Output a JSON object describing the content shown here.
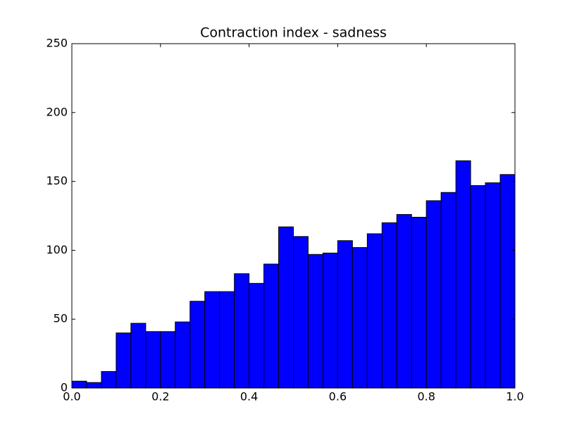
{
  "chart_data": {
    "type": "histogram",
    "title": "Contraction index - sadness",
    "bins": [
      0,
      0.0333,
      0.0667,
      0.1,
      0.1333,
      0.1667,
      0.2,
      0.2333,
      0.2667,
      0.3,
      0.3333,
      0.3667,
      0.4,
      0.4333,
      0.4667,
      0.5,
      0.5333,
      0.5667,
      0.6,
      0.6333,
      0.6667,
      0.7,
      0.7333,
      0.7667,
      0.8,
      0.8333,
      0.8667,
      0.9,
      0.9333,
      0.9667,
      1.0
    ],
    "counts": [
      5,
      4,
      12,
      40,
      47,
      41,
      41,
      48,
      63,
      70,
      70,
      83,
      76,
      90,
      117,
      110,
      97,
      98,
      107,
      102,
      112,
      120,
      126,
      124,
      136,
      142,
      165,
      147,
      149,
      155
    ],
    "color": "#0000ff",
    "xlim": [
      0,
      1
    ],
    "ylim": [
      0,
      250
    ],
    "xticks": [
      {
        "value": 0,
        "label": "0.0"
      },
      {
        "value": 0.2,
        "label": "0.2"
      },
      {
        "value": 0.4,
        "label": "0.4"
      },
      {
        "value": 0.6,
        "label": "0.6"
      },
      {
        "value": 0.8,
        "label": "0.8"
      },
      {
        "value": 1,
        "label": "1.0"
      }
    ],
    "yticks": [
      0,
      50,
      100,
      150,
      200,
      250
    ]
  }
}
